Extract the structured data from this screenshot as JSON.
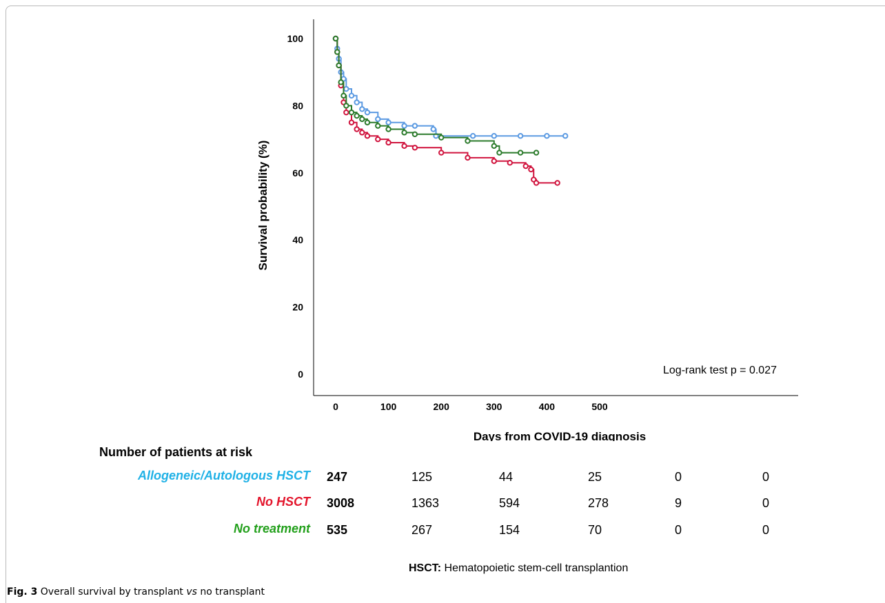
{
  "chart_data": {
    "type": "line",
    "subtype": "kaplan-meier",
    "title": "",
    "xlabel": "Days from COVID-19 diagnosis",
    "ylabel": "Survival probability (%)",
    "xlim": [
      0,
      500
    ],
    "ylim": [
      0,
      100
    ],
    "x_ticks": [
      0,
      100,
      200,
      300,
      400,
      500
    ],
    "y_ticks": [
      0,
      20,
      40,
      60,
      80,
      100
    ],
    "grid": false,
    "annotation": "Log-rank test p = 0.027",
    "series": [
      {
        "name": "Allogeneic/Autologous HSCT",
        "color": "#5b9ae2",
        "x": [
          0,
          3,
          6,
          10,
          15,
          20,
          30,
          40,
          50,
          60,
          80,
          100,
          130,
          150,
          185,
          190,
          260,
          300,
          350,
          400,
          435
        ],
        "y": [
          100,
          97,
          94,
          90,
          88,
          85,
          83,
          81,
          79,
          78,
          76,
          75,
          74,
          74,
          73,
          71,
          71,
          71,
          71,
          71,
          71
        ]
      },
      {
        "name": "No HSCT",
        "color": "#d0133d",
        "x": [
          0,
          3,
          6,
          10,
          15,
          20,
          30,
          40,
          50,
          60,
          80,
          100,
          130,
          150,
          200,
          250,
          300,
          330,
          360,
          370,
          375,
          380,
          420
        ],
        "y": [
          100,
          96,
          92,
          86,
          81,
          78,
          75,
          73,
          72,
          71,
          70,
          69,
          68,
          67.5,
          66,
          64.5,
          63.5,
          63,
          62,
          61,
          58,
          57,
          57
        ]
      },
      {
        "name": "No treatment",
        "color": "#2a7a2a",
        "x": [
          0,
          3,
          6,
          10,
          15,
          20,
          30,
          40,
          50,
          60,
          80,
          100,
          130,
          150,
          200,
          250,
          300,
          310,
          350,
          380
        ],
        "y": [
          100,
          96,
          92,
          87,
          83,
          80,
          78,
          77,
          76,
          75,
          74,
          73,
          72,
          71.5,
          70.5,
          69.5,
          68,
          66,
          66,
          66
        ]
      }
    ]
  },
  "risk_table": {
    "title": "Number of patients at risk",
    "rows": [
      {
        "label": "Allogeneic/Autologous HSCT",
        "color": "#1fb1e6",
        "values": [
          "247",
          "125",
          "44",
          "25",
          "0",
          "0"
        ]
      },
      {
        "label": "No HSCT",
        "color": "#e3142b",
        "values": [
          "3008",
          "1363",
          "594",
          "278",
          "9",
          "0"
        ]
      },
      {
        "label": "No treatment",
        "color": "#23a01c",
        "values": [
          "535",
          "267",
          "154",
          "70",
          "0",
          "0"
        ]
      }
    ]
  },
  "footnote": {
    "term": "HSCT:",
    "text": " Hematopoietic stem-cell transplantion"
  },
  "caption": {
    "fig": "Fig. 3",
    "text_before": "  Overall survival by transplant ",
    "vs": "vs",
    "text_after": " no transplant"
  }
}
